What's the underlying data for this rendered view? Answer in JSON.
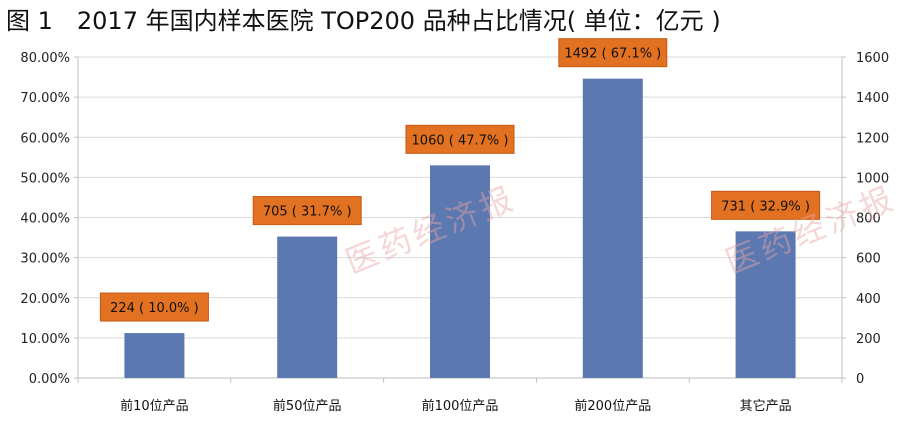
{
  "title": "图 1　2017 年国内样本医院 TOP200 品种占比情况( 单位：亿元 )",
  "watermark_text": "医药经济报",
  "chart_data": {
    "type": "bar",
    "title": "图 1　2017 年国内样本医院 TOP200 品种占比情况( 单位：亿元 )",
    "categories": [
      "前10位产品",
      "前50位产品",
      "前100位产品",
      "前200位产品",
      "其它产品"
    ],
    "values": [
      224,
      705,
      1060,
      1492,
      731
    ],
    "shares": [
      "10.0%",
      "31.7%",
      "47.7%",
      "67.1%",
      "32.9%"
    ],
    "data_labels": [
      "224 ( 10.0% )",
      "705 ( 31.7% )",
      "1060 ( 47.7% )",
      "1492 ( 67.1% )",
      "731 ( 32.9% )"
    ],
    "y_left_ticks": [
      "0.00%",
      "10.00%",
      "20.00%",
      "30.00%",
      "40.00%",
      "50.00%",
      "60.00%",
      "70.00%",
      "80.00%"
    ],
    "y_right_ticks": [
      "0",
      "200",
      "400",
      "600",
      "800",
      "1000",
      "1200",
      "1400",
      "1600"
    ],
    "ylim_left": [
      0,
      80
    ],
    "ylim_right": [
      0,
      1600
    ],
    "grid": true,
    "colors": {
      "bar": "#5b78b0",
      "label_bg": "#e27122",
      "label_border": "#c45a12",
      "grid": "#d9d9d9",
      "axis": "#bfbfbf"
    }
  }
}
